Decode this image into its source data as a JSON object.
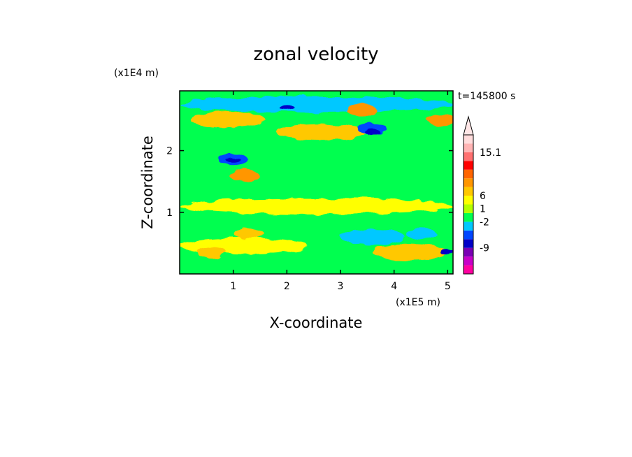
{
  "chart_data": {
    "type": "heatmap",
    "title": "zonal velocity",
    "xlabel": "X-coordinate",
    "ylabel": "Z-coordinate",
    "x_scale_label": "(x1E5 m)",
    "y_scale_label": "(x1E4 m)",
    "time_label": "t=145800 s",
    "xlim": [
      0.0,
      5.1
    ],
    "ylim": [
      0.0,
      2.97
    ],
    "x_ticks": [
      "1",
      "2",
      "3",
      "4",
      "5"
    ],
    "y_ticks": [
      "1",
      "2"
    ],
    "colorbar": {
      "labels": [
        "15.1",
        "6",
        "1",
        "-2",
        "-9"
      ],
      "colors": [
        "#ff00a0",
        "#c800c8",
        "#7a00b4",
        "#0000c8",
        "#0046ff",
        "#00c8ff",
        "#00ff50",
        "#b4ff00",
        "#ffff00",
        "#ffc800",
        "#ff9600",
        "#ff6400",
        "#ff0000",
        "#ff7070",
        "#ffb4b4",
        "#ffdcdc"
      ],
      "overflow_arrow_color": "#ffe6e6"
    },
    "features": [
      {
        "kind": "background",
        "value": 0,
        "color": "#00ff50"
      },
      {
        "kind": "band",
        "x": [
          0.0,
          5.1
        ],
        "y": 2.75,
        "value": -1.5,
        "color": "#00c8ff"
      },
      {
        "kind": "band",
        "x": [
          0.2,
          1.6
        ],
        "y": 2.5,
        "value": 3,
        "color": "#ffc800"
      },
      {
        "kind": "band",
        "x": [
          1.8,
          3.5
        ],
        "y": 2.3,
        "value": 3,
        "color": "#ffc800"
      },
      {
        "kind": "blob",
        "x": 1.0,
        "y": 1.85,
        "value": -5,
        "color": "#0046ff"
      },
      {
        "kind": "blob",
        "x": 1.0,
        "y": 1.85,
        "value": -9,
        "color": "#0000c8"
      },
      {
        "kind": "blob",
        "x": 1.2,
        "y": 1.6,
        "value": 6,
        "color": "#ff9600"
      },
      {
        "kind": "blob",
        "x": 3.6,
        "y": 2.35,
        "value": -5,
        "color": "#0046ff"
      },
      {
        "kind": "blob",
        "x": 3.6,
        "y": 2.3,
        "value": -9,
        "color": "#0000c8"
      },
      {
        "kind": "blob",
        "x": 3.4,
        "y": 2.65,
        "value": 6,
        "color": "#ff9600"
      },
      {
        "kind": "blob",
        "x": 2.0,
        "y": 2.7,
        "value": -9,
        "color": "#0000c8"
      },
      {
        "kind": "blob",
        "x": 4.9,
        "y": 2.5,
        "value": 6,
        "color": "#ff9600"
      },
      {
        "kind": "band",
        "x": [
          0.0,
          5.1
        ],
        "y": 1.1,
        "value": 1,
        "color": "#ffff00"
      },
      {
        "kind": "band",
        "x": [
          0.0,
          2.4
        ],
        "y": 0.45,
        "value": 2,
        "color": "#ffff00"
      },
      {
        "kind": "blob",
        "x": 0.6,
        "y": 0.35,
        "value": 3,
        "color": "#ffc800"
      },
      {
        "kind": "blob",
        "x": 1.3,
        "y": 0.65,
        "value": 3,
        "color": "#ffc800"
      },
      {
        "kind": "band",
        "x": [
          3.0,
          4.2
        ],
        "y": 0.6,
        "value": -1.5,
        "color": "#00c8ff"
      },
      {
        "kind": "blob",
        "x": 4.5,
        "y": 0.65,
        "value": -1.5,
        "color": "#00c8ff"
      },
      {
        "kind": "band",
        "x": [
          3.6,
          5.0
        ],
        "y": 0.35,
        "value": 3,
        "color": "#ffc800"
      },
      {
        "kind": "blob",
        "x": 5.0,
        "y": 0.35,
        "value": -9,
        "color": "#0000c8"
      }
    ]
  }
}
